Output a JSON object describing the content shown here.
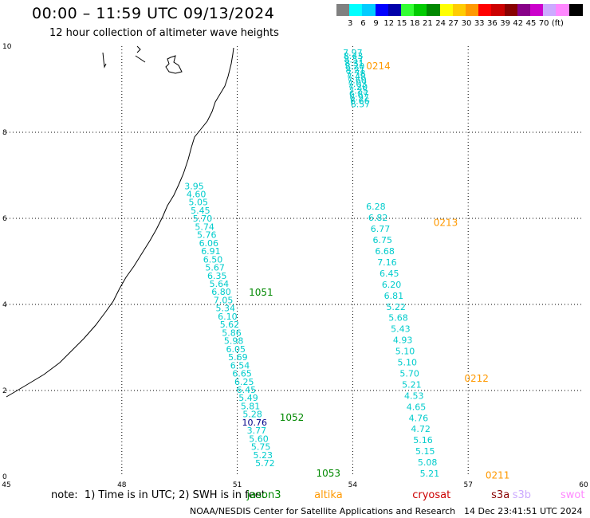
{
  "title": "00:00 – 11:59 UTC 09/13/2024",
  "subtitle": "12 hour collection of altimeter wave heights",
  "legend": {
    "colors": [
      "#808080",
      "#00ffff",
      "#00ccff",
      "#0000ff",
      "#0000aa",
      "#33ff33",
      "#00cc00",
      "#008800",
      "#ffff00",
      "#ffcc00",
      "#ff9900",
      "#ff0000",
      "#cc0000",
      "#880000",
      "#880088",
      "#cc00cc",
      "#ccaaff",
      "#ff88ff",
      "#000000"
    ],
    "labels": [
      "3",
      "6",
      "9",
      "12",
      "15",
      "18",
      "21",
      "24",
      "27",
      "30",
      "33",
      "36",
      "39",
      "42",
      "45",
      "70",
      "(ft)"
    ]
  },
  "axes": {
    "lon_ticks": [
      "45",
      "48",
      "51",
      "54",
      "57",
      "60"
    ],
    "lat_ticks": [
      "0",
      "2",
      "4",
      "6",
      "8",
      "10"
    ],
    "lon_range": [
      45,
      60
    ],
    "lat_range": [
      0,
      10
    ]
  },
  "tracks": [
    {
      "name": "0214",
      "color": "#ff9900",
      "label_lon": 54.35,
      "label_lat": 9.46,
      "start": [
        54.0,
        9.78
      ],
      "end": [
        54.2,
        8.58
      ],
      "values": [
        "7.97",
        "8.43",
        "8.57",
        "8.31",
        "8.20",
        "8.21",
        "7.78",
        "7.48",
        "7.60",
        "7.03",
        "7.20",
        "7.25",
        "6.87",
        "6.97",
        "6.66",
        "6.57"
      ]
    },
    {
      "name": "0213",
      "color": "#ff9900",
      "label_lon": 56.1,
      "label_lat": 5.82,
      "start": [
        54.6,
        6.2
      ],
      "end": [
        56.0,
        0.0
      ],
      "values": [
        "6.28",
        "6.82",
        "6.77",
        "6.75",
        "6.68",
        "7.16",
        "6.45",
        "6.20",
        "6.81",
        "5.22",
        "5.68",
        "5.43",
        "4.93",
        "5.10",
        "5.10",
        "5.70",
        "5.21",
        "4.53",
        "4.65",
        "4.76",
        "4.72",
        "5.16",
        "5.15",
        "5.08",
        "5.21"
      ]
    },
    {
      "name": "1051",
      "color": "#008800",
      "label_lon": 51.3,
      "label_lat": 4.2,
      "start": [
        49.88,
        6.68
      ],
      "end": [
        51.72,
        0.24
      ],
      "values": [
        "3.95",
        "4.60",
        "5.05",
        "5.45",
        "5.70",
        "5.74",
        "5.76",
        "6.06",
        "6.91",
        "6.50",
        "5.67",
        "6.35",
        "5.64",
        "6.80",
        "7.05",
        "5.34",
        "6.10",
        "5.62",
        "5.86",
        "5.98",
        "6.05",
        "5.69",
        "6.54",
        "6.65",
        "6.25",
        "6.45",
        "5.49",
        "5.81",
        "5.28",
        "10.76",
        "3.77",
        "5.60",
        "5.75",
        "5.23",
        "5.72"
      ]
    }
  ],
  "highlight_value": "10.76",
  "highlight_color": "#000088",
  "value_color": "#00cccc",
  "pass_labels": [
    {
      "text": "0212",
      "lon": 56.9,
      "lat": 2.2,
      "color": "#ff9900"
    },
    {
      "text": "1052",
      "lon": 52.1,
      "lat": 1.3,
      "color": "#008800"
    },
    {
      "text": "1053",
      "lon": 53.05,
      "lat": 0.0,
      "color": "#008800"
    },
    {
      "text": "0211",
      "lon": 57.45,
      "lat": -0.05,
      "color": "#ff9900"
    }
  ],
  "note": "note:  1) Time is in UTC; 2) SWH is in feet",
  "satellites": [
    {
      "name": "jason3",
      "color": "#008800",
      "lon": 51.25
    },
    {
      "name": "altika",
      "color": "#ff9900",
      "lon": 53.0
    },
    {
      "name": "cryosat",
      "color": "#cc0000",
      "lon": 55.55
    },
    {
      "name": "s3a",
      "color": "#880000",
      "lon": 57.6
    },
    {
      "name": "s3b",
      "color": "#ccaaff",
      "lon": 58.15
    },
    {
      "name": "swot",
      "color": "#ff88ff",
      "lon": 59.4
    }
  ],
  "footer": "NOAA/NESDIS Center for Satellite Applications and Research",
  "footer_date": "14 Dec 23:41:51 UTC 2024"
}
